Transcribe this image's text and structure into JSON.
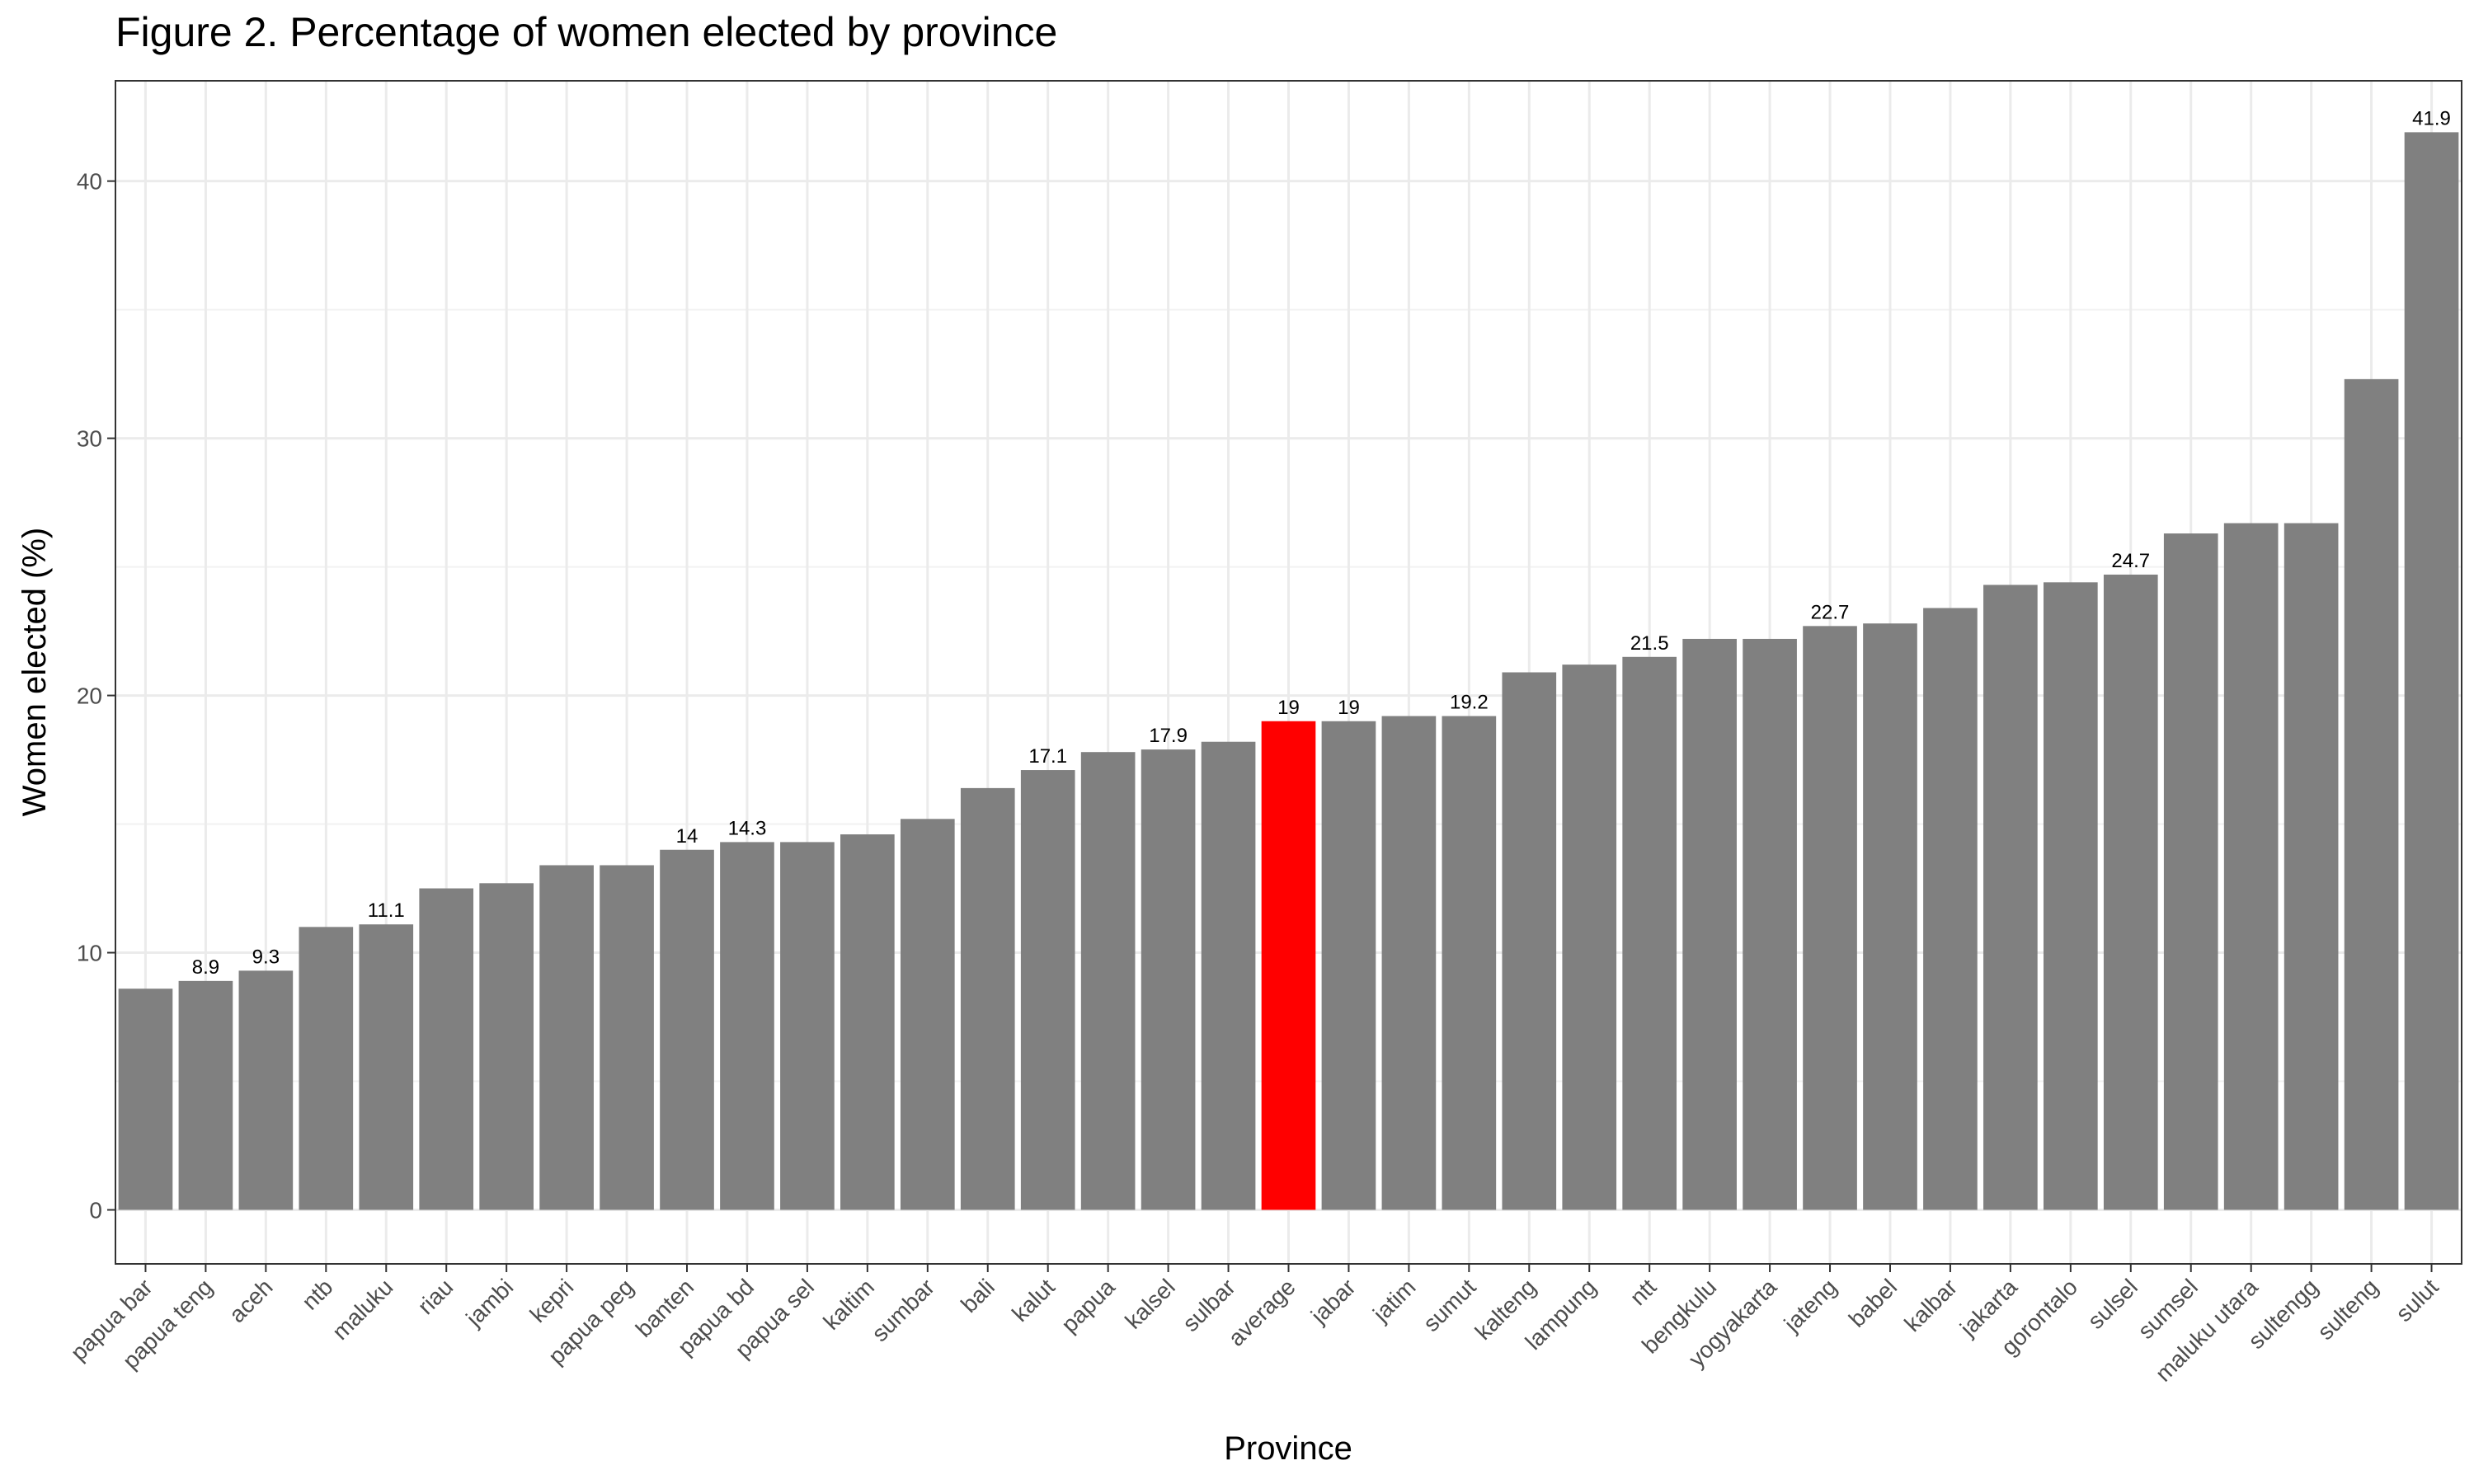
{
  "chart_data": {
    "type": "bar",
    "title": "Figure 2. Percentage of women elected by province",
    "xlabel": "Province",
    "ylabel": "Women elected (%)",
    "ylim": [
      -2.1,
      43.9
    ],
    "yticks": [
      0,
      10,
      20,
      30,
      40
    ],
    "grid": true,
    "legend": "none",
    "colors": {
      "default": "#808080",
      "highlight": "#ff0000"
    },
    "highlight_category": "average",
    "categories": [
      "papua bar",
      "papua teng",
      "aceh",
      "ntb",
      "maluku",
      "riau",
      "jambi",
      "kepri",
      "papua peg",
      "banten",
      "papua bd",
      "papua sel",
      "kaltim",
      "sumbar",
      "bali",
      "kalut",
      "papua",
      "kalsel",
      "sulbar",
      "average",
      "jabar",
      "jatim",
      "sumut",
      "kalteng",
      "lampung",
      "ntt",
      "bengkulu",
      "yogyakarta",
      "jateng",
      "babel",
      "kalbar",
      "jakarta",
      "gorontalo",
      "sulsel",
      "sumsel",
      "maluku utara",
      "sultengg",
      "sulteng",
      "sulut"
    ],
    "values": [
      8.6,
      8.9,
      9.3,
      11.0,
      11.1,
      12.5,
      12.7,
      13.4,
      13.4,
      14.0,
      14.3,
      14.3,
      14.6,
      15.2,
      16.4,
      17.1,
      17.8,
      17.9,
      18.2,
      19.0,
      19.0,
      19.2,
      19.2,
      20.9,
      21.2,
      21.5,
      22.2,
      22.2,
      22.7,
      22.8,
      23.4,
      24.3,
      24.4,
      24.7,
      26.3,
      26.7,
      26.7,
      32.3,
      41.9
    ],
    "data_labels": [
      {
        "category": "papua teng",
        "text": "8.9"
      },
      {
        "category": "aceh",
        "text": "9.3"
      },
      {
        "category": "maluku",
        "text": "11.1"
      },
      {
        "category": "banten",
        "text": "14"
      },
      {
        "category": "papua bd",
        "text": "14.3"
      },
      {
        "category": "kalut",
        "text": "17.1"
      },
      {
        "category": "kalsel",
        "text": "17.9"
      },
      {
        "category": "average",
        "text": "19"
      },
      {
        "category": "jabar",
        "text": "19"
      },
      {
        "category": "sumut",
        "text": "19.2"
      },
      {
        "category": "ntt",
        "text": "21.5"
      },
      {
        "category": "jateng",
        "text": "22.7"
      },
      {
        "category": "sulsel",
        "text": "24.7"
      },
      {
        "category": "sulut",
        "text": "41.9"
      }
    ]
  }
}
